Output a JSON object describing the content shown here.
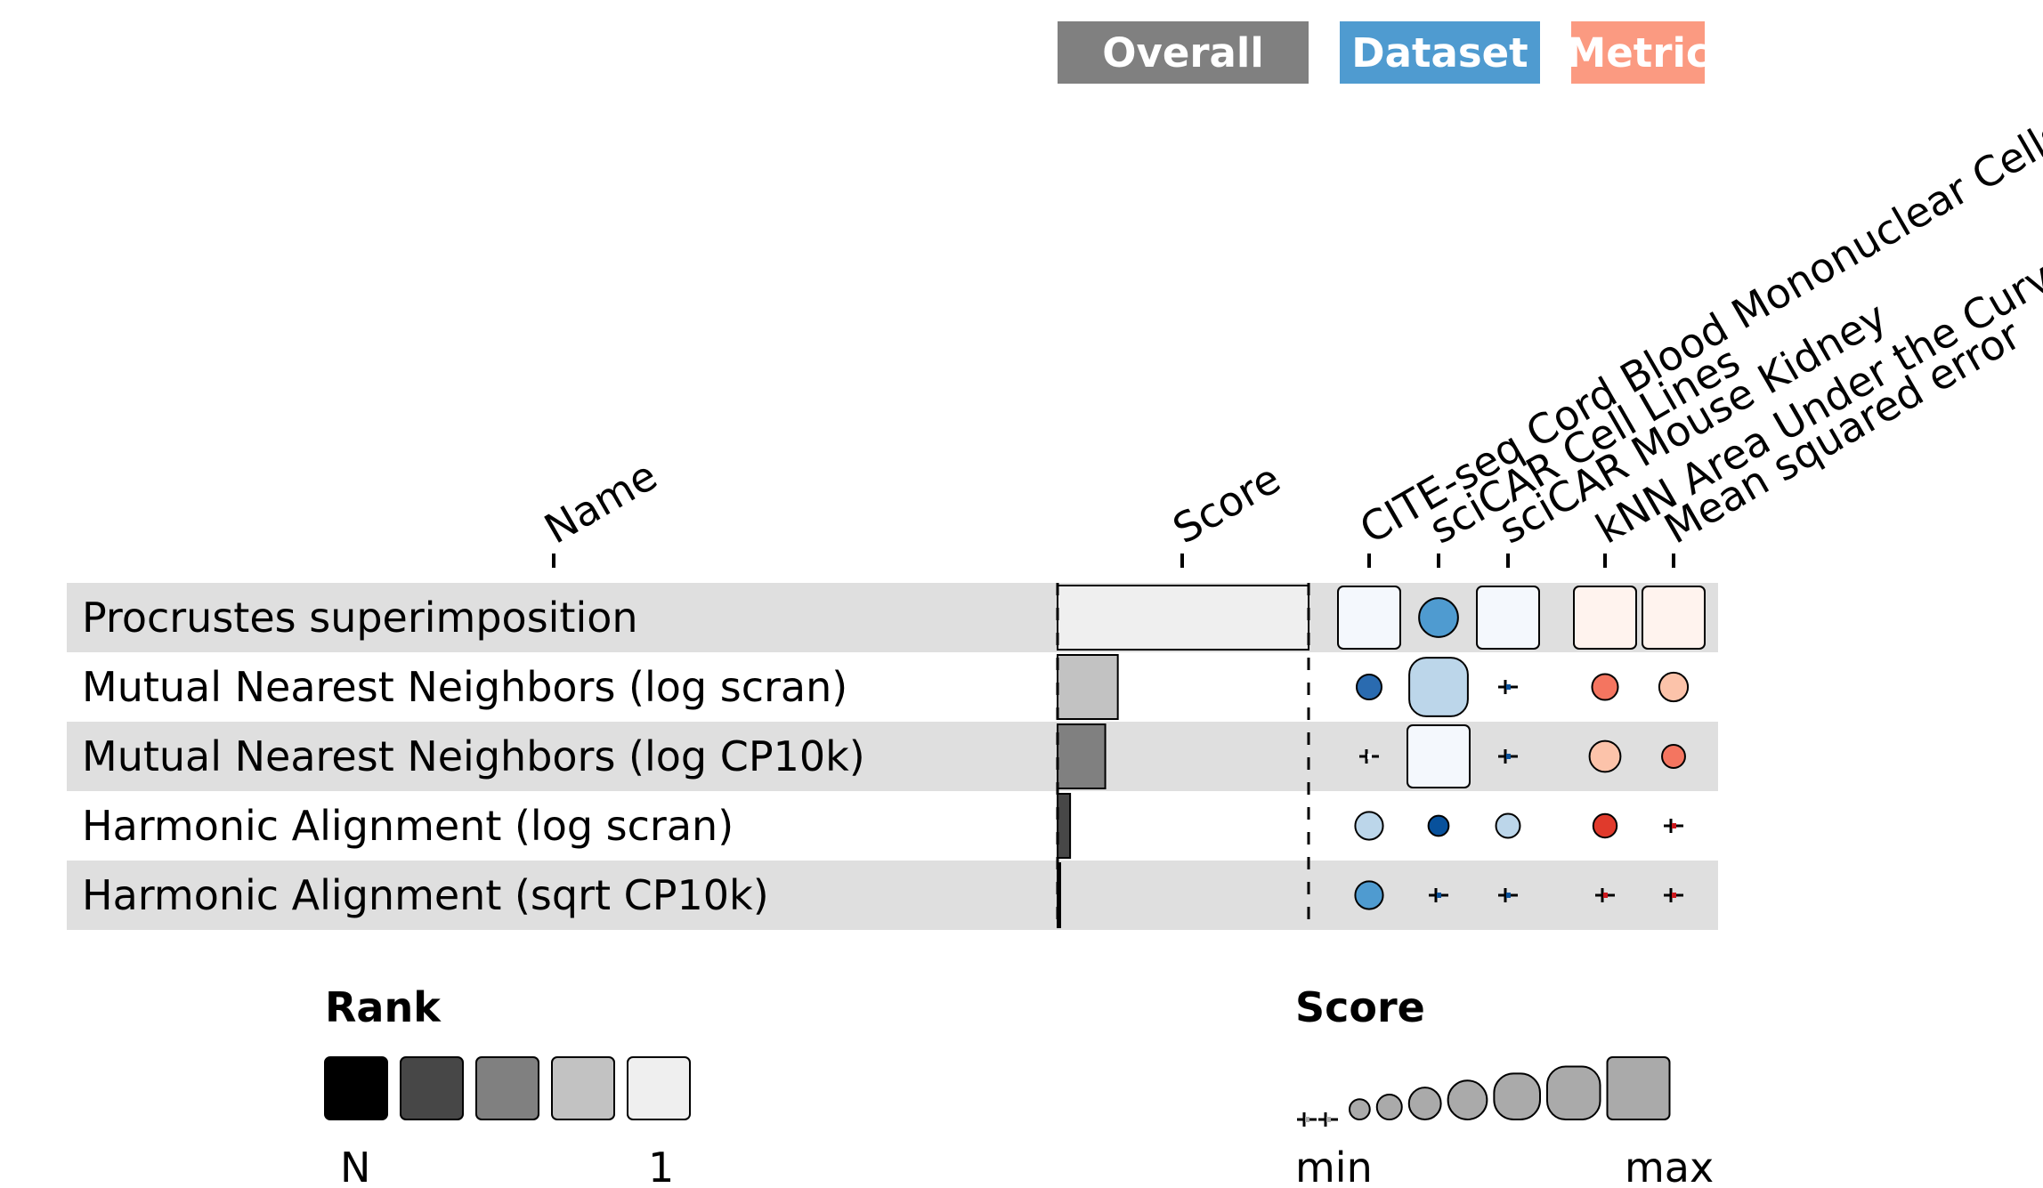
{
  "chart_data": {
    "type": "table",
    "categories": [
      {
        "name": "Overall",
        "color": "#808080"
      },
      {
        "name": "Dataset",
        "color": "#4f9bd0"
      },
      {
        "name": "Metric",
        "color": "#fb9a81"
      }
    ],
    "columns": [
      {
        "key": "name",
        "label": "Name"
      },
      {
        "key": "score",
        "label": "Score",
        "group": "Overall"
      },
      {
        "key": "cite",
        "label": "CITE-seq Cord Blood Mononuclear Cells",
        "group": "Dataset"
      },
      {
        "key": "scicar_cl",
        "label": "sciCAR Cell Lines",
        "group": "Dataset"
      },
      {
        "key": "scicar_mk",
        "label": "sciCAR Mouse Kidney",
        "group": "Dataset"
      },
      {
        "key": "knn_auc",
        "label": "kNN Area Under the Curve",
        "group": "Metric"
      },
      {
        "key": "mse",
        "label": "Mean squared error",
        "group": "Metric"
      }
    ],
    "rows": [
      {
        "name": "Procrustes superimposition",
        "score": 1.0,
        "cite": 1.0,
        "scicar_cl": 0.5,
        "scicar_mk": 1.0,
        "knn_auc": 1.0,
        "mse": 1.0
      },
      {
        "name": "Mutual Nearest Neighbors (log scran)",
        "score": 0.24,
        "cite": 0.2,
        "scicar_cl": 0.92,
        "scicar_mk": 0.02,
        "knn_auc": 0.22,
        "mse": 0.28
      },
      {
        "name": "Mutual Nearest Neighbors (log CP10k)",
        "score": 0.19,
        "cite": 0.02,
        "scicar_cl": 1.0,
        "scicar_mk": 0.02,
        "knn_auc": 0.33,
        "mse": 0.16
      },
      {
        "name": "Harmonic Alignment (log scran)",
        "score": 0.05,
        "cite": 0.26,
        "scicar_cl": 0.1,
        "scicar_mk": 0.18,
        "knn_auc": 0.17,
        "mse": 0.02
      },
      {
        "name": "Harmonic Alignment (sqrt CP10k)",
        "score": 0.0,
        "cite": 0.26,
        "scicar_cl": 0.02,
        "scicar_mk": 0.02,
        "knn_auc": 0.02,
        "mse": 0.02
      }
    ],
    "legends": {
      "rank": {
        "title": "Rank",
        "low_label": "N",
        "high_label": "1"
      },
      "score": {
        "title": "Score",
        "low_label": "min",
        "high_label": "max"
      }
    }
  }
}
